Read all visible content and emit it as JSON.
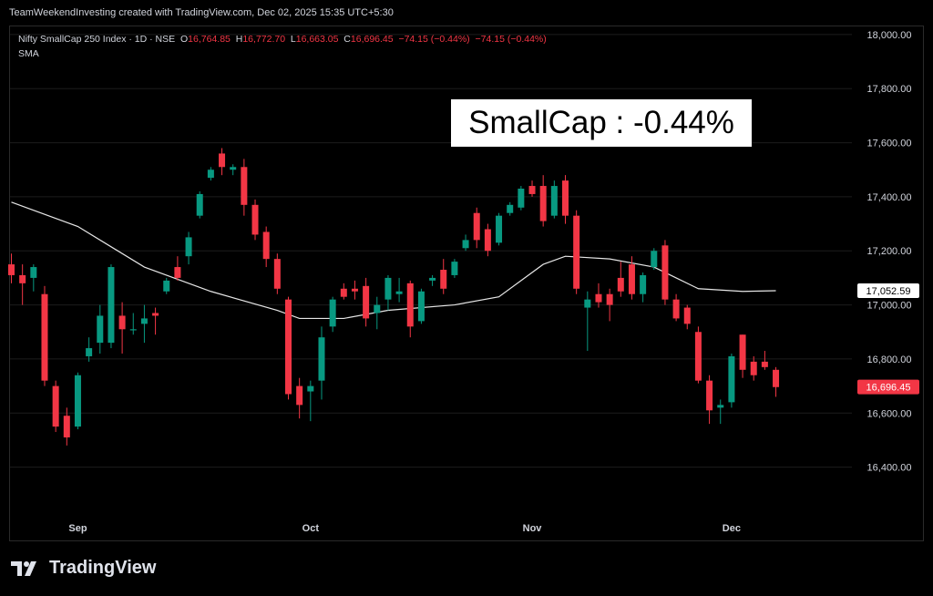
{
  "header": {
    "created_by": "TeamWeekendInvesting created with TradingView.com, Dec 02, 2025 15:35 UTC+5:30"
  },
  "legend": {
    "symbol": "Nifty SmallCap 250 Index · 1D · NSE",
    "open_label": "O",
    "open": "16,764.85",
    "high_label": "H",
    "high": "16,772.70",
    "low_label": "L",
    "low": "16,663.05",
    "close_label": "C",
    "close": "16,696.45",
    "change": "−74.15 (−0.44%)",
    "change2": "−74.15 (−0.44%)",
    "indicator": "SMA"
  },
  "annotation": "SmallCap : -0.44%",
  "footer": {
    "brand": "TradingView",
    "logo_icon": "tradingview-logo-icon"
  },
  "colors": {
    "up": "#089981",
    "down": "#f23645",
    "sma": "#e6e6e6",
    "background": "#000000",
    "grid": "#1c1c1c"
  },
  "chart_data": {
    "type": "candlestick",
    "y_ticks": [
      "18,000.00",
      "17,800.00",
      "17,600.00",
      "17,400.00",
      "17,200.00",
      "17,000.00",
      "16,800.00",
      "16,600.00",
      "16,400.00"
    ],
    "y_tick_values": [
      18000,
      17800,
      17600,
      17400,
      17200,
      17000,
      16800,
      16600,
      16400
    ],
    "ylim": [
      16220,
      18030
    ],
    "x_tick_labels": [
      {
        "label": "Sep",
        "index": 6
      },
      {
        "label": "Oct",
        "index": 27
      },
      {
        "label": "Nov",
        "index": 47
      },
      {
        "label": "Dec",
        "index": 65
      }
    ],
    "sma_label": "17,052.59",
    "sma_value": 17052.59,
    "last_price_label": "16,696.45",
    "last_price": 16696.45,
    "candles": [
      {
        "o": 17150,
        "h": 17190,
        "l": 17080,
        "c": 17110
      },
      {
        "o": 17110,
        "h": 17150,
        "l": 17000,
        "c": 17080
      },
      {
        "o": 17100,
        "h": 17150,
        "l": 17050,
        "c": 17140
      },
      {
        "o": 17040,
        "h": 17070,
        "l": 16700,
        "c": 16720
      },
      {
        "o": 16700,
        "h": 16720,
        "l": 16530,
        "c": 16550
      },
      {
        "o": 16590,
        "h": 16620,
        "l": 16480,
        "c": 16510
      },
      {
        "o": 16550,
        "h": 16750,
        "l": 16540,
        "c": 16740
      },
      {
        "o": 16810,
        "h": 16880,
        "l": 16790,
        "c": 16840
      },
      {
        "o": 16860,
        "h": 17000,
        "l": 16820,
        "c": 16960
      },
      {
        "o": 16860,
        "h": 17150,
        "l": 16840,
        "c": 17140
      },
      {
        "o": 16960,
        "h": 17010,
        "l": 16820,
        "c": 16910
      },
      {
        "o": 16910,
        "h": 16970,
        "l": 16890,
        "c": 16910
      },
      {
        "o": 16930,
        "h": 17000,
        "l": 16860,
        "c": 16950
      },
      {
        "o": 16970,
        "h": 16990,
        "l": 16890,
        "c": 16960
      },
      {
        "o": 17050,
        "h": 17100,
        "l": 17040,
        "c": 17090
      },
      {
        "o": 17140,
        "h": 17180,
        "l": 17090,
        "c": 17100
      },
      {
        "o": 17180,
        "h": 17270,
        "l": 17150,
        "c": 17250
      },
      {
        "o": 17330,
        "h": 17420,
        "l": 17320,
        "c": 17410
      },
      {
        "o": 17470,
        "h": 17510,
        "l": 17460,
        "c": 17500
      },
      {
        "o": 17560,
        "h": 17580,
        "l": 17480,
        "c": 17510
      },
      {
        "o": 17500,
        "h": 17520,
        "l": 17480,
        "c": 17510
      },
      {
        "o": 17510,
        "h": 17540,
        "l": 17330,
        "c": 17370
      },
      {
        "o": 17370,
        "h": 17390,
        "l": 17240,
        "c": 17260
      },
      {
        "o": 17270,
        "h": 17290,
        "l": 17140,
        "c": 17170
      },
      {
        "o": 17170,
        "h": 17190,
        "l": 17040,
        "c": 17060
      },
      {
        "o": 17020,
        "h": 17030,
        "l": 16650,
        "c": 16670
      },
      {
        "o": 16700,
        "h": 16730,
        "l": 16580,
        "c": 16630
      },
      {
        "o": 16680,
        "h": 16720,
        "l": 16570,
        "c": 16700
      },
      {
        "o": 16720,
        "h": 16920,
        "l": 16650,
        "c": 16880
      },
      {
        "o": 16920,
        "h": 17030,
        "l": 16900,
        "c": 17020
      },
      {
        "o": 17060,
        "h": 17080,
        "l": 17020,
        "c": 17030
      },
      {
        "o": 17060,
        "h": 17090,
        "l": 17020,
        "c": 17050
      },
      {
        "o": 17070,
        "h": 17100,
        "l": 16920,
        "c": 16950
      },
      {
        "o": 16970,
        "h": 17030,
        "l": 16910,
        "c": 17000
      },
      {
        "o": 17020,
        "h": 17110,
        "l": 16980,
        "c": 17100
      },
      {
        "o": 17040,
        "h": 17100,
        "l": 17010,
        "c": 17050
      },
      {
        "o": 17080,
        "h": 17090,
        "l": 16880,
        "c": 16920
      },
      {
        "o": 16940,
        "h": 17060,
        "l": 16930,
        "c": 17050
      },
      {
        "o": 17090,
        "h": 17110,
        "l": 17070,
        "c": 17100
      },
      {
        "o": 17130,
        "h": 17170,
        "l": 17040,
        "c": 17060
      },
      {
        "o": 17110,
        "h": 17170,
        "l": 17100,
        "c": 17160
      },
      {
        "o": 17210,
        "h": 17260,
        "l": 17200,
        "c": 17240
      },
      {
        "o": 17340,
        "h": 17360,
        "l": 17210,
        "c": 17240
      },
      {
        "o": 17280,
        "h": 17300,
        "l": 17180,
        "c": 17200
      },
      {
        "o": 17230,
        "h": 17340,
        "l": 17220,
        "c": 17330
      },
      {
        "o": 17340,
        "h": 17380,
        "l": 17330,
        "c": 17370
      },
      {
        "o": 17360,
        "h": 17440,
        "l": 17350,
        "c": 17430
      },
      {
        "o": 17440,
        "h": 17460,
        "l": 17400,
        "c": 17410
      },
      {
        "o": 17440,
        "h": 17480,
        "l": 17290,
        "c": 17310
      },
      {
        "o": 17330,
        "h": 17460,
        "l": 17320,
        "c": 17440
      },
      {
        "o": 17460,
        "h": 17480,
        "l": 17300,
        "c": 17330
      },
      {
        "o": 17330,
        "h": 17350,
        "l": 17040,
        "c": 17060
      },
      {
        "o": 16990,
        "h": 17050,
        "l": 16830,
        "c": 17020
      },
      {
        "o": 17040,
        "h": 17080,
        "l": 16990,
        "c": 17010
      },
      {
        "o": 17040,
        "h": 17060,
        "l": 16940,
        "c": 17000
      },
      {
        "o": 17100,
        "h": 17160,
        "l": 17030,
        "c": 17050
      },
      {
        "o": 17150,
        "h": 17180,
        "l": 17020,
        "c": 17040
      },
      {
        "o": 17040,
        "h": 17120,
        "l": 17010,
        "c": 17110
      },
      {
        "o": 17140,
        "h": 17210,
        "l": 17130,
        "c": 17200
      },
      {
        "o": 17220,
        "h": 17240,
        "l": 17000,
        "c": 17020
      },
      {
        "o": 17020,
        "h": 17040,
        "l": 16940,
        "c": 16950
      },
      {
        "o": 16990,
        "h": 17000,
        "l": 16910,
        "c": 16930
      },
      {
        "o": 16900,
        "h": 16920,
        "l": 16710,
        "c": 16720
      },
      {
        "o": 16720,
        "h": 16740,
        "l": 16560,
        "c": 16610
      },
      {
        "o": 16620,
        "h": 16650,
        "l": 16560,
        "c": 16630
      },
      {
        "o": 16640,
        "h": 16820,
        "l": 16620,
        "c": 16810
      },
      {
        "o": 16890,
        "h": 16890,
        "l": 16730,
        "c": 16760
      },
      {
        "o": 16790,
        "h": 16810,
        "l": 16720,
        "c": 16740
      },
      {
        "o": 16790,
        "h": 16830,
        "l": 16760,
        "c": 16770
      },
      {
        "o": 16760,
        "h": 16770,
        "l": 16660,
        "c": 16696
      }
    ],
    "sma": [
      [
        0,
        17380
      ],
      [
        6,
        17290
      ],
      [
        12,
        17140
      ],
      [
        18,
        17050
      ],
      [
        24,
        16980
      ],
      [
        26,
        16950
      ],
      [
        30,
        16950
      ],
      [
        34,
        16980
      ],
      [
        40,
        17000
      ],
      [
        44,
        17030
      ],
      [
        48,
        17150
      ],
      [
        50,
        17180
      ],
      [
        54,
        17170
      ],
      [
        58,
        17140
      ],
      [
        60,
        17100
      ],
      [
        62,
        17060
      ],
      [
        66,
        17050
      ],
      [
        69,
        17052.59
      ]
    ]
  }
}
